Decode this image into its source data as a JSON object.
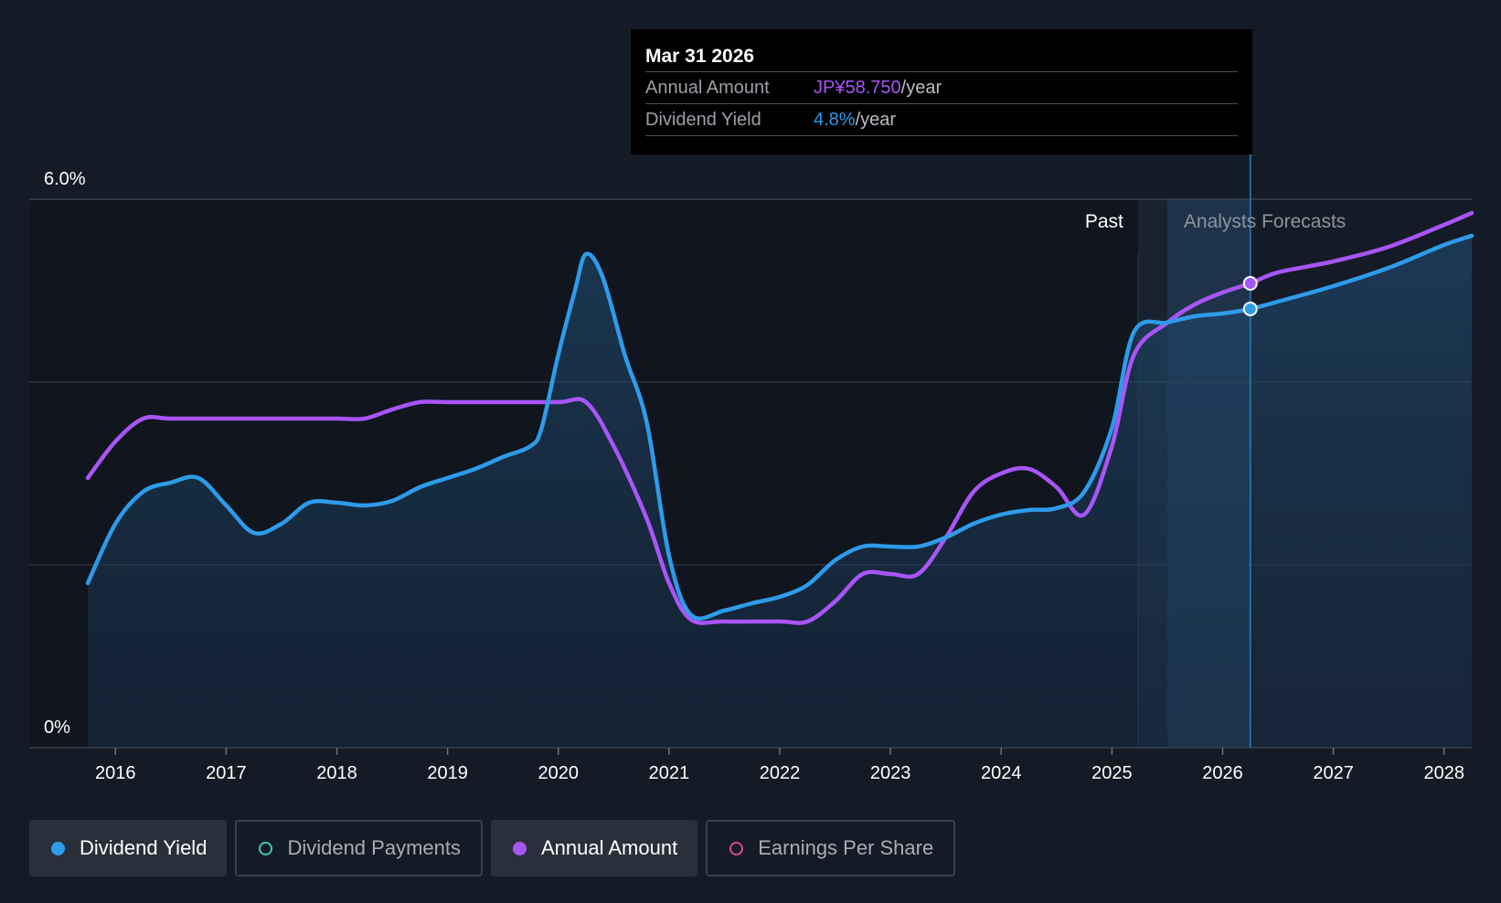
{
  "tooltip": {
    "date": "Mar 31 2026",
    "rows": [
      {
        "label": "Annual Amount",
        "value": "JP¥58.750",
        "unit": "/year"
      },
      {
        "label": "Dividend Yield",
        "value": "4.8%",
        "unit": "/year"
      }
    ]
  },
  "legend": [
    {
      "label": "Dividend Yield",
      "color": "#2e9bea",
      "filled": true,
      "active": true
    },
    {
      "label": "Dividend Payments",
      "color": "#3ec7b7",
      "filled": false,
      "active": false
    },
    {
      "label": "Annual Amount",
      "color": "#a855f7",
      "filled": true,
      "active": true
    },
    {
      "label": "Earnings Per Share",
      "color": "#d64a8a",
      "filled": false,
      "active": false
    }
  ],
  "chart_data": {
    "type": "line",
    "y_tick_labels": [
      "6.0%",
      "0%"
    ],
    "ylim": [
      0,
      6.0
    ],
    "xlim": [
      2015.75,
      2028.25
    ],
    "x_tick_labels": [
      "2016",
      "2017",
      "2018",
      "2019",
      "2020",
      "2021",
      "2022",
      "2023",
      "2024",
      "2025",
      "2026",
      "2027",
      "2028"
    ],
    "region_labels": {
      "past": "Past",
      "forecast": "Analysts Forecasts"
    },
    "past_end": 2025.5,
    "forecast_end": 2026.25,
    "marker_x": 2026.25,
    "grid": true,
    "series": [
      {
        "name": "Dividend Yield",
        "color": "#2e9bea",
        "area": true,
        "points": [
          [
            2015.75,
            1.8
          ],
          [
            2016.0,
            2.45
          ],
          [
            2016.25,
            2.8
          ],
          [
            2016.5,
            2.9
          ],
          [
            2016.75,
            2.95
          ],
          [
            2017.0,
            2.65
          ],
          [
            2017.25,
            2.35
          ],
          [
            2017.5,
            2.45
          ],
          [
            2017.75,
            2.68
          ],
          [
            2018.0,
            2.68
          ],
          [
            2018.25,
            2.65
          ],
          [
            2018.5,
            2.7
          ],
          [
            2018.75,
            2.85
          ],
          [
            2019.0,
            2.95
          ],
          [
            2019.25,
            3.05
          ],
          [
            2019.5,
            3.18
          ],
          [
            2019.75,
            3.3
          ],
          [
            2019.85,
            3.5
          ],
          [
            2020.0,
            4.3
          ],
          [
            2020.15,
            5.0
          ],
          [
            2020.25,
            5.4
          ],
          [
            2020.4,
            5.15
          ],
          [
            2020.6,
            4.3
          ],
          [
            2020.8,
            3.55
          ],
          [
            2021.0,
            2.1
          ],
          [
            2021.2,
            1.45
          ],
          [
            2021.5,
            1.5
          ],
          [
            2021.75,
            1.58
          ],
          [
            2022.0,
            1.65
          ],
          [
            2022.25,
            1.78
          ],
          [
            2022.5,
            2.05
          ],
          [
            2022.75,
            2.2
          ],
          [
            2023.0,
            2.2
          ],
          [
            2023.25,
            2.2
          ],
          [
            2023.5,
            2.3
          ],
          [
            2023.75,
            2.45
          ],
          [
            2024.0,
            2.55
          ],
          [
            2024.25,
            2.6
          ],
          [
            2024.5,
            2.62
          ],
          [
            2024.75,
            2.8
          ],
          [
            2025.0,
            3.5
          ],
          [
            2025.2,
            4.55
          ],
          [
            2025.5,
            4.65
          ],
          [
            2025.75,
            4.72
          ],
          [
            2026.0,
            4.75
          ],
          [
            2026.25,
            4.8
          ],
          [
            2026.5,
            4.88
          ],
          [
            2027.0,
            5.05
          ],
          [
            2027.5,
            5.25
          ],
          [
            2028.0,
            5.5
          ],
          [
            2028.25,
            5.6
          ]
        ]
      },
      {
        "name": "Annual Amount",
        "color": "#a855f7",
        "area": false,
        "points": [
          [
            2015.75,
            2.95
          ],
          [
            2016.0,
            3.35
          ],
          [
            2016.25,
            3.6
          ],
          [
            2016.5,
            3.6
          ],
          [
            2017.0,
            3.6
          ],
          [
            2017.5,
            3.6
          ],
          [
            2018.0,
            3.6
          ],
          [
            2018.25,
            3.6
          ],
          [
            2018.5,
            3.7
          ],
          [
            2018.75,
            3.78
          ],
          [
            2019.0,
            3.78
          ],
          [
            2019.5,
            3.78
          ],
          [
            2020.0,
            3.78
          ],
          [
            2020.25,
            3.78
          ],
          [
            2020.5,
            3.3
          ],
          [
            2020.8,
            2.5
          ],
          [
            2021.0,
            1.8
          ],
          [
            2021.2,
            1.4
          ],
          [
            2021.5,
            1.38
          ],
          [
            2022.0,
            1.38
          ],
          [
            2022.25,
            1.38
          ],
          [
            2022.5,
            1.6
          ],
          [
            2022.75,
            1.9
          ],
          [
            2023.0,
            1.9
          ],
          [
            2023.25,
            1.9
          ],
          [
            2023.5,
            2.3
          ],
          [
            2023.75,
            2.8
          ],
          [
            2024.0,
            3.0
          ],
          [
            2024.25,
            3.05
          ],
          [
            2024.5,
            2.85
          ],
          [
            2024.75,
            2.55
          ],
          [
            2025.0,
            3.3
          ],
          [
            2025.2,
            4.3
          ],
          [
            2025.5,
            4.65
          ],
          [
            2025.75,
            4.85
          ],
          [
            2026.0,
            4.98
          ],
          [
            2026.25,
            5.08
          ],
          [
            2026.5,
            5.2
          ],
          [
            2027.0,
            5.32
          ],
          [
            2027.5,
            5.48
          ],
          [
            2028.0,
            5.72
          ],
          [
            2028.25,
            5.85
          ]
        ]
      }
    ]
  }
}
